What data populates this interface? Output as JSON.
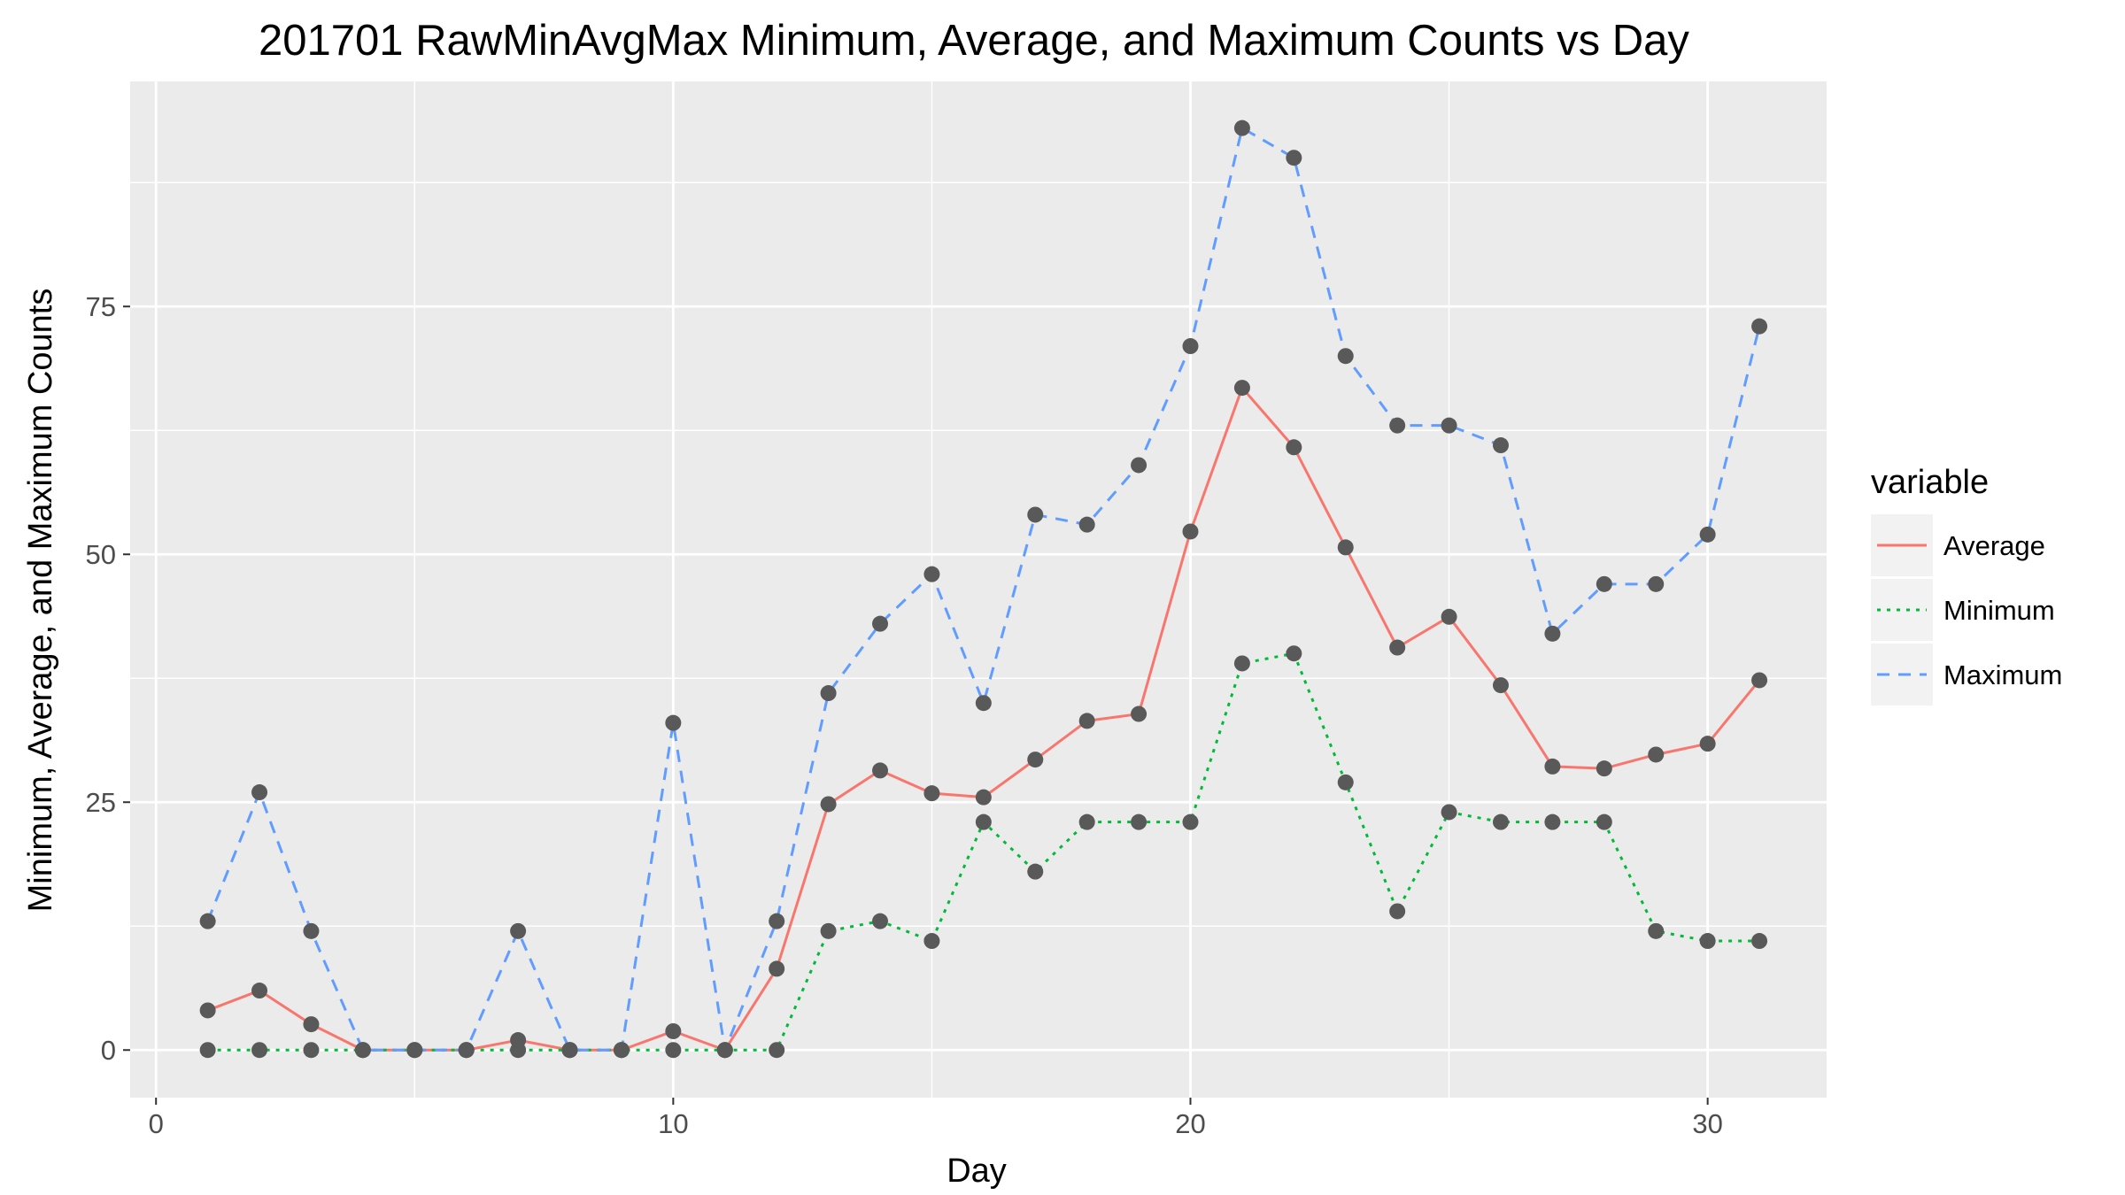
{
  "chart_data": {
    "type": "line",
    "title": "201701 RawMinAvgMax Minimum, Average, and Maximum Counts vs Day",
    "xlabel": "Day",
    "ylabel": "Minimum, Average, and Maximum Counts",
    "x_ticks": [
      0,
      10,
      20,
      30
    ],
    "y_ticks": [
      0,
      25,
      50,
      75
    ],
    "xlim": [
      -0.5,
      32.3
    ],
    "ylim": [
      -4.8,
      97.7
    ],
    "grid": true,
    "legend": {
      "title": "variable",
      "placement": "right"
    },
    "x": [
      1,
      2,
      3,
      4,
      5,
      6,
      7,
      8,
      9,
      10,
      11,
      12,
      13,
      14,
      15,
      16,
      17,
      18,
      19,
      20,
      21,
      22,
      23,
      24,
      25,
      26,
      27,
      28,
      29,
      30,
      31
    ],
    "series": [
      {
        "name": "Average",
        "color": "#F8766D",
        "dash": "solid",
        "values": [
          4,
          6,
          2.6,
          0,
          0,
          0,
          1,
          0,
          0,
          1.9,
          0,
          8.2,
          24.8,
          28.2,
          25.9,
          25.5,
          29.3,
          33.2,
          33.9,
          52.3,
          66.8,
          60.8,
          50.7,
          40.6,
          43.7,
          36.8,
          28.6,
          28.4,
          29.8,
          30.9,
          37.3
        ]
      },
      {
        "name": "Minimum",
        "color": "#00BA38",
        "dash": "dotted",
        "values": [
          0,
          0,
          0,
          0,
          0,
          0,
          0,
          0,
          0,
          0,
          0,
          0,
          12,
          13,
          11,
          23,
          18,
          23,
          23,
          23,
          39,
          40,
          27,
          14,
          24,
          23,
          23,
          23,
          12,
          11,
          11
        ]
      },
      {
        "name": "Maximum",
        "color": "#619CFF",
        "dash": "dashed",
        "values": [
          13,
          26,
          12,
          0,
          0,
          0,
          12,
          0,
          0,
          33,
          0,
          13,
          36,
          43,
          48,
          35,
          54,
          53,
          59,
          71,
          93,
          90,
          70,
          63,
          63,
          61,
          42,
          47,
          47,
          52,
          73
        ]
      }
    ],
    "point_color": "#595959",
    "panel_background": "#EBEBEB",
    "grid_color": "#FFFFFF"
  }
}
